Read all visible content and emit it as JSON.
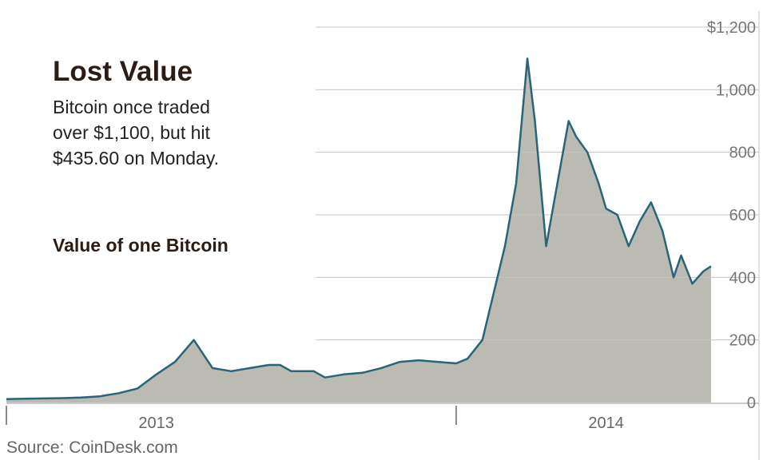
{
  "headline": {
    "title": "Lost Value",
    "subtitle_lines": [
      "Bitcoin once traded",
      "over $1,100, but hit",
      "$435.60 on Monday."
    ]
  },
  "series_label": "Value of one Bitcoin",
  "source": "Source: CoinDesk.com",
  "colors": {
    "area_fill": "#bcbbb3",
    "line": "#2a6478",
    "grid": "#c4c4c4",
    "title": "#2b1d14",
    "tick_text": "#777777"
  },
  "chart_data": {
    "type": "area",
    "title": "Value of one Bitcoin",
    "x_tick_labels": [
      "2013",
      "2014"
    ],
    "y_tick_labels": [
      "$1,200",
      "1,000",
      "800",
      "600",
      "400",
      "200",
      "0"
    ],
    "y_ticks": [
      1200,
      1000,
      800,
      600,
      400,
      200,
      0
    ],
    "ylim": [
      0,
      1200
    ],
    "x_unit": "months since Sept 1, 2012",
    "xlim": [
      0,
      18.8
    ],
    "x_ticks": [
      {
        "label": "2013",
        "x": 4
      },
      {
        "label": "2014",
        "x": 16
      }
    ],
    "grid": true,
    "x": [
      0,
      0.5,
      1,
      1.5,
      2,
      2.5,
      3,
      3.5,
      4,
      4.5,
      5,
      5.5,
      6,
      6.5,
      7,
      7.3,
      7.6,
      7.9,
      8.2,
      8.5,
      9,
      9.5,
      10,
      10.5,
      11,
      11.5,
      12,
      12.3,
      12.7,
      13,
      13.3,
      13.6,
      13.9,
      14.1,
      14.4,
      14.7,
      15,
      15.2,
      15.5,
      15.8,
      16,
      16.3,
      16.6,
      16.9,
      17.2,
      17.5,
      17.8,
      18,
      18.3,
      18.6,
      18.8
    ],
    "values": [
      11,
      12,
      13,
      14,
      16,
      20,
      30,
      45,
      90,
      130,
      200,
      110,
      100,
      110,
      120,
      120,
      100,
      100,
      100,
      80,
      90,
      95,
      110,
      130,
      135,
      130,
      125,
      140,
      200,
      350,
      500,
      700,
      1100,
      900,
      500,
      700,
      900,
      850,
      800,
      700,
      620,
      600,
      500,
      580,
      640,
      550,
      400,
      470,
      380,
      420,
      435.6
    ]
  }
}
